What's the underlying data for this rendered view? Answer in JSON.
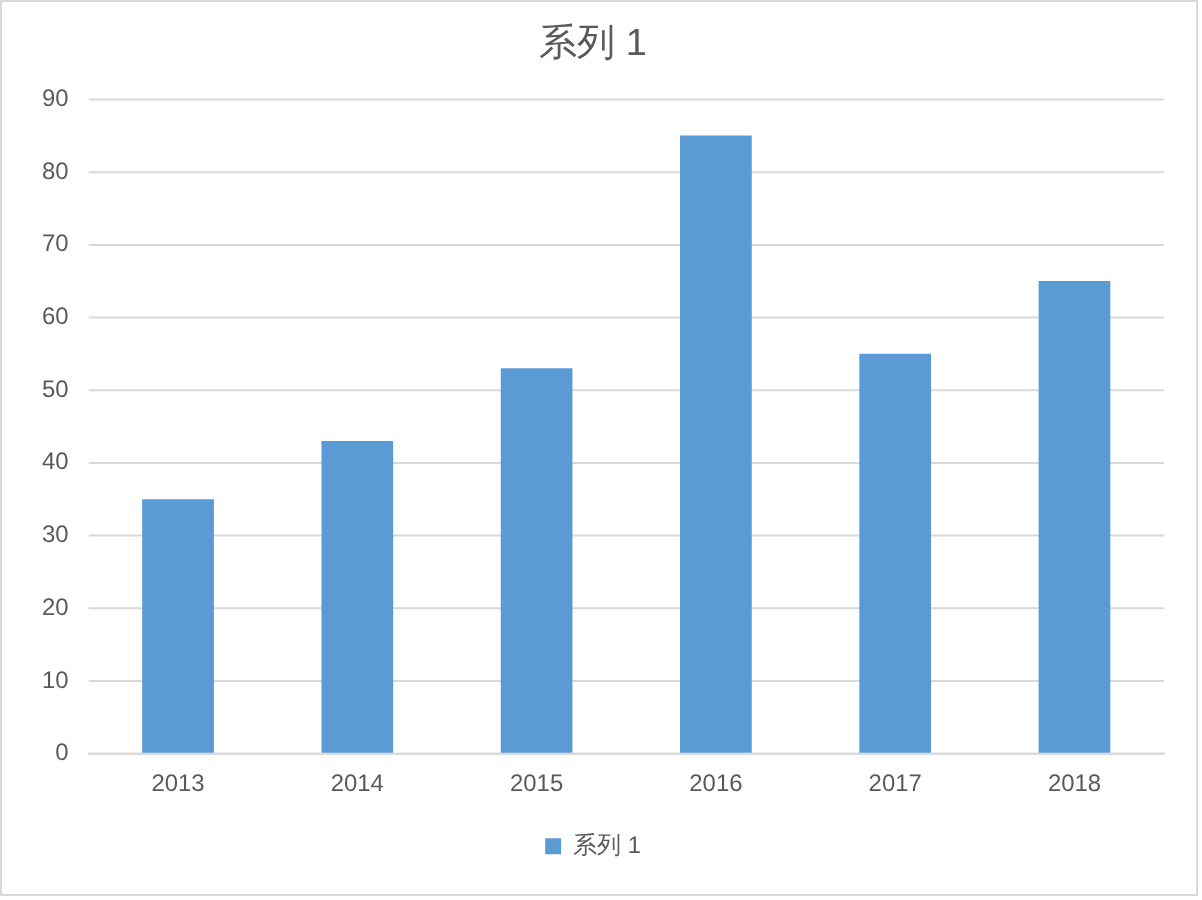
{
  "chart_data": {
    "type": "bar",
    "title": "系列 1",
    "categories": [
      "2013",
      "2014",
      "2015",
      "2016",
      "2017",
      "2018"
    ],
    "series": [
      {
        "name": "系列 1",
        "color": "#5b9bd5",
        "values": [
          35,
          43,
          53,
          85,
          55,
          65
        ]
      }
    ],
    "ylim": [
      0,
      90
    ],
    "yticks": [
      0,
      10,
      20,
      30,
      40,
      50,
      60,
      70,
      80,
      90
    ],
    "grid": "y",
    "legend": "bottom"
  }
}
